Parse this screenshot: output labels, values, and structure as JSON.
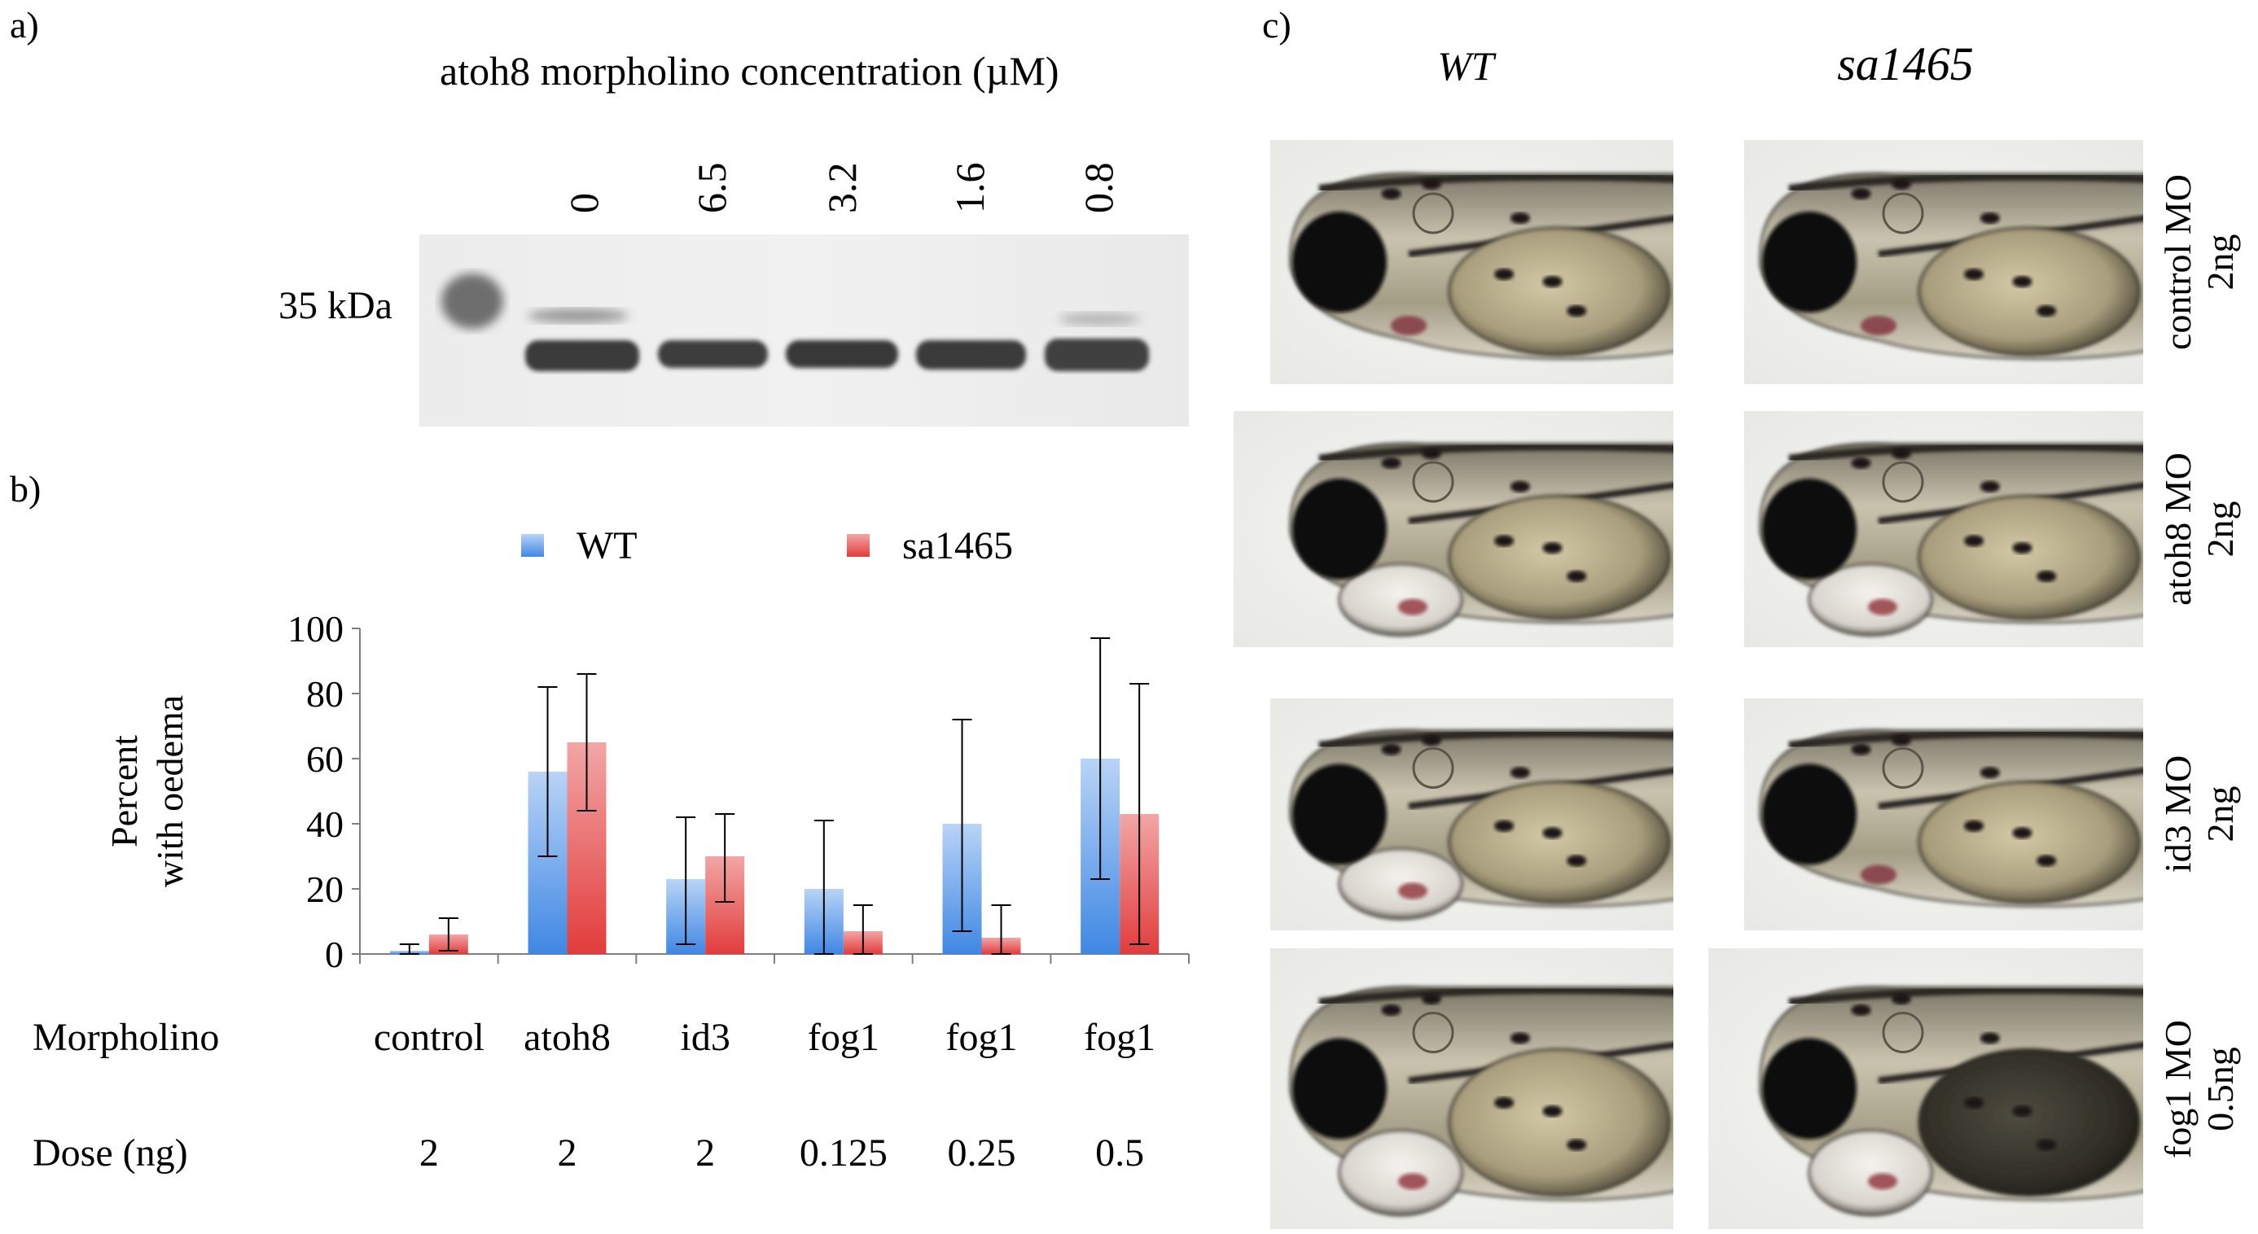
{
  "panel_labels": {
    "a": "a)",
    "b": "b)",
    "c": "c)"
  },
  "panel_a": {
    "title": "atoh8 morpholino concentration (µM)",
    "marker_label": "35 kDa",
    "lanes": [
      "0",
      "6.5",
      "3.2",
      "1.6",
      "0.8"
    ]
  },
  "panel_c": {
    "col_headers": [
      "WT",
      "sa1465"
    ],
    "row_labels": [
      [
        "control MO",
        "2ng"
      ],
      [
        "atoh8 MO",
        "2ng"
      ],
      [
        "id3 MO",
        "2ng"
      ],
      [
        "fog1 MO",
        "0.5ng"
      ]
    ]
  },
  "chart_data": {
    "type": "bar",
    "ylabel": [
      "Percent",
      "with oedema"
    ],
    "ylim": [
      0,
      100
    ],
    "yticks": [
      "0",
      "20",
      "40",
      "60",
      "80",
      "100"
    ],
    "row_headers": [
      "Morpholino",
      "Dose (ng)"
    ],
    "categories": [
      {
        "morpholino": "control",
        "dose": "2"
      },
      {
        "morpholino": "atoh8",
        "dose": "2"
      },
      {
        "morpholino": "id3",
        "dose": "2"
      },
      {
        "morpholino": "fog1",
        "dose": "0.125"
      },
      {
        "morpholino": "fog1",
        "dose": "0.25"
      },
      {
        "morpholino": "fog1",
        "dose": "0.5"
      }
    ],
    "series": [
      {
        "name": "WT",
        "color": "#4a8fe0",
        "values": [
          1,
          56,
          23,
          20,
          40,
          60
        ],
        "err_low": [
          0,
          30,
          3,
          0,
          7,
          23
        ],
        "err_high": [
          3,
          82,
          42,
          41,
          72,
          97
        ]
      },
      {
        "name": "sa1465",
        "color": "#e04a4a",
        "values": [
          6,
          65,
          30,
          7,
          5,
          43
        ],
        "err_low": [
          1,
          44,
          16,
          0,
          0,
          3
        ],
        "err_high": [
          11,
          86,
          43,
          15,
          15,
          83
        ]
      }
    ],
    "legend_position": "top"
  }
}
